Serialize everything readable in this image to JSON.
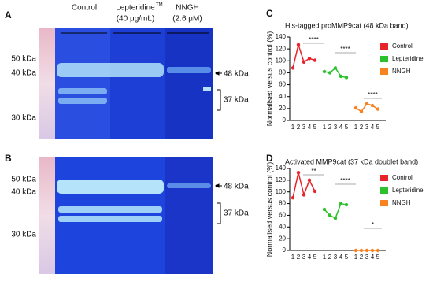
{
  "figure": {
    "panels": [
      "A",
      "B",
      "C",
      "D"
    ],
    "gel": {
      "lanes": [
        "Control",
        "Lepteridine",
        "NNGH"
      ],
      "lane_notes": [
        "TM",
        "(40 μg/mL)",
        "(2.6 μM)"
      ],
      "markers": [
        "50 kDa",
        "40 kDa",
        "30 kDa"
      ],
      "bands": [
        "48 kDa",
        "37 kDa"
      ]
    }
  },
  "chart_data": [
    {
      "type": "scatter",
      "title": "His-tagged proMMP9cat (48 kDa band)",
      "y_label": "Normalised versus control (%)",
      "categories": [
        "1",
        "2",
        "3",
        "4",
        "5"
      ],
      "series": [
        {
          "name": "Control",
          "color": "#e8232a",
          "values": [
            88,
            127,
            98,
            104,
            101
          ]
        },
        {
          "name": "Lepteridine",
          "color": "#2cc12c",
          "values": [
            82,
            80,
            88,
            74,
            72
          ]
        },
        {
          "name": "NNGH",
          "color": "#f7821f",
          "values": [
            21,
            15,
            28,
            25,
            19
          ]
        }
      ],
      "annotations": [
        "****",
        "****",
        "****"
      ],
      "ylim": [
        0,
        140
      ],
      "yticks": [
        0,
        20,
        40,
        60,
        80,
        100,
        120,
        140
      ]
    },
    {
      "type": "scatter",
      "title": "Activated MMP9cat (37 kDa doublet band)",
      "y_label": "Normalised versus control (%)",
      "categories": [
        "1",
        "2",
        "3",
        "4",
        "5"
      ],
      "series": [
        {
          "name": "Control",
          "color": "#e8232a",
          "values": [
            90,
            133,
            95,
            120,
            101
          ]
        },
        {
          "name": "Lepteridine",
          "color": "#2cc12c",
          "values": [
            70,
            60,
            55,
            80,
            78
          ]
        },
        {
          "name": "NNGH",
          "color": "#f7821f",
          "values": [
            0,
            0,
            0,
            0,
            0
          ]
        }
      ],
      "annotations": [
        "**",
        "****",
        "*"
      ],
      "ylim": [
        0,
        140
      ],
      "yticks": [
        0,
        20,
        40,
        60,
        80,
        100,
        120,
        140
      ]
    }
  ]
}
